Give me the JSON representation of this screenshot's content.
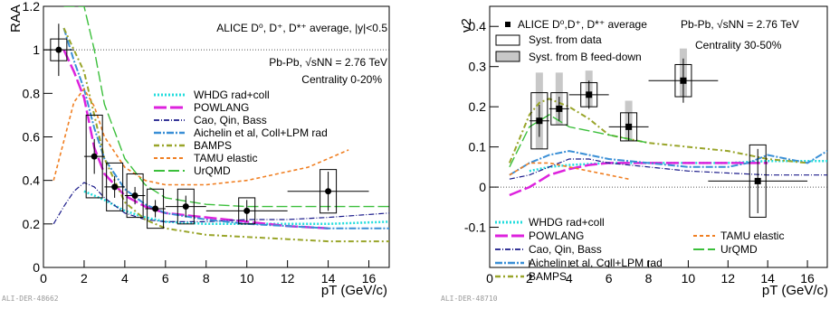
{
  "colors": {
    "WHDG": "#22dddd",
    "POWLANG": "#dd22dd",
    "Cao": "#1a1a8a",
    "Aichelin": "#3a8fd6",
    "BAMPS": "#99a52a",
    "TAMU": "#f07f22",
    "UrQMD": "#3bbf3b",
    "feeddown": "#c8c8c8"
  },
  "chart_data": [
    {
      "type": "line",
      "title": "ALICE D⁰, D⁺, D*⁺ average, |y|<0.5",
      "annotations": [
        "Pb-Pb, √sNN = 2.76 TeV",
        "Centrality 0-20%"
      ],
      "xlabel": "pT (GeV/c)",
      "ylabel": "RAA",
      "xlim": [
        0,
        17
      ],
      "ylim": [
        0,
        1.2
      ],
      "xticks": [
        0,
        2,
        4,
        6,
        8,
        10,
        12,
        14,
        16
      ],
      "yticks": [
        0,
        0.2,
        0.4,
        0.6,
        0.8,
        1,
        1.2
      ],
      "footer": "ALI-DER-48662",
      "data": {
        "x": [
          0.75,
          2.5,
          3.5,
          4.5,
          5.5,
          7.0,
          10.0,
          14.0
        ],
        "xerr": [
          0.75,
          0.5,
          0.5,
          0.5,
          0.5,
          1.0,
          2.0,
          2.0
        ],
        "y": [
          1.0,
          0.51,
          0.37,
          0.33,
          0.27,
          0.28,
          0.26,
          0.35
        ],
        "yerr": [
          0.12,
          0.08,
          0.05,
          0.04,
          0.04,
          0.05,
          0.05,
          0.09
        ],
        "syst": [
          0.05,
          0.19,
          0.11,
          0.1,
          0.09,
          0.08,
          0.06,
          0.1
        ]
      },
      "series": [
        {
          "name": "WHDG rad+coll",
          "key": "WHDG",
          "x": [
            2,
            3,
            4,
            5,
            6,
            8,
            10,
            12,
            14,
            17
          ],
          "y": [
            0.35,
            0.31,
            0.26,
            0.23,
            0.21,
            0.2,
            0.2,
            0.2,
            0.2,
            0.21
          ]
        },
        {
          "name": "POWLANG",
          "key": "POWLANG",
          "x": [
            1,
            1.5,
            2,
            2.5,
            3,
            4,
            5,
            6,
            7,
            8,
            10,
            12,
            14
          ],
          "y": [
            1.0,
            0.9,
            0.78,
            0.55,
            0.43,
            0.33,
            0.28,
            0.25,
            0.24,
            0.23,
            0.21,
            0.19,
            0.18
          ]
        },
        {
          "name": "Cao, Qin, Bass",
          "key": "Cao",
          "x": [
            0.5,
            1,
            1.5,
            2,
            2.5,
            3,
            4,
            5,
            6,
            8,
            10,
            12,
            14,
            17
          ],
          "y": [
            0.2,
            0.28,
            0.35,
            0.39,
            0.37,
            0.32,
            0.25,
            0.22,
            0.21,
            0.21,
            0.22,
            0.22,
            0.23,
            0.25
          ]
        },
        {
          "name": "Aichelin et al, Coll+LPM rad",
          "key": "Aichelin",
          "x": [
            1,
            1.5,
            2,
            2.5,
            3,
            4,
            5,
            6,
            8,
            10,
            12,
            14,
            17
          ],
          "y": [
            1.1,
            0.95,
            0.82,
            0.64,
            0.5,
            0.36,
            0.29,
            0.25,
            0.22,
            0.2,
            0.19,
            0.18,
            0.18
          ]
        },
        {
          "name": "BAMPS",
          "key": "BAMPS",
          "x": [
            1,
            1.5,
            2,
            2.5,
            3,
            4,
            5,
            6,
            8,
            10,
            12,
            14,
            17
          ],
          "y": [
            1.1,
            1.0,
            0.9,
            0.7,
            0.5,
            0.3,
            0.22,
            0.18,
            0.15,
            0.14,
            0.13,
            0.12,
            0.12
          ]
        },
        {
          "name": "TAMU elastic",
          "key": "TAMU",
          "x": [
            0.5,
            1,
            1.5,
            2,
            2.5,
            3,
            4,
            5,
            6,
            7,
            8,
            9,
            10,
            11,
            12,
            13,
            14,
            15
          ],
          "y": [
            0.4,
            0.58,
            0.76,
            0.82,
            0.74,
            0.6,
            0.46,
            0.4,
            0.38,
            0.38,
            0.38,
            0.39,
            0.4,
            0.42,
            0.44,
            0.46,
            0.5,
            0.54
          ]
        },
        {
          "name": "UrQMD",
          "key": "UrQMD",
          "x": [
            1,
            1.5,
            2,
            2.5,
            3,
            4,
            5,
            6,
            8,
            10,
            12,
            14,
            17
          ],
          "y": [
            1.2,
            1.2,
            1.2,
            1.0,
            0.75,
            0.5,
            0.38,
            0.32,
            0.29,
            0.28,
            0.28,
            0.28,
            0.28
          ]
        }
      ]
    },
    {
      "type": "line",
      "title": "ALICE D⁰,D⁺, D*⁺ average",
      "annotations": [
        "Pb-Pb, √sNN = 2.76 TeV",
        "Centrality 30-50%",
        "Syst. from data",
        "Syst. from B feed-down"
      ],
      "xlabel": "pT (GeV/c)",
      "ylabel": "v2",
      "xlim": [
        0,
        17
      ],
      "ylim": [
        -0.2,
        0.45
      ],
      "xticks": [
        0,
        2,
        4,
        6,
        8,
        10,
        12,
        14,
        16
      ],
      "yticks": [
        -0.1,
        0,
        0.1,
        0.2,
        0.3,
        0.4
      ],
      "footer": "ALI-DER-48710",
      "data": {
        "x": [
          2.5,
          3.5,
          5.0,
          7.0,
          9.75,
          13.5
        ],
        "xerr": [
          0.5,
          0.5,
          1.0,
          1.0,
          1.75,
          2.5
        ],
        "y": [
          0.165,
          0.195,
          0.23,
          0.15,
          0.265,
          0.015
        ],
        "yerr": [
          0.04,
          0.03,
          0.035,
          0.035,
          0.055,
          0.08
        ],
        "syst_data": [
          0.07,
          0.04,
          0.03,
          0.035,
          0.04,
          0.09
        ],
        "syst_feeddown_up": [
          0.05,
          0.05,
          0.03,
          0.03,
          0.04,
          0.0
        ]
      },
      "series": [
        {
          "name": "WHDG rad+coll",
          "key": "WHDG",
          "x": [
            2,
            3,
            4,
            6,
            8,
            10,
            12,
            14,
            17
          ],
          "y": [
            0.04,
            0.05,
            0.055,
            0.06,
            0.06,
            0.06,
            0.06,
            0.065,
            0.065
          ]
        },
        {
          "name": "POWLANG",
          "key": "POWLANG",
          "x": [
            1,
            1.5,
            2,
            2.5,
            3,
            4,
            5,
            6,
            8,
            10,
            12,
            14
          ],
          "y": [
            -0.02,
            -0.01,
            0.0,
            0.015,
            0.03,
            0.045,
            0.055,
            0.06,
            0.06,
            0.06,
            0.06,
            0.06
          ]
        },
        {
          "name": "Cao, Qin, Bass",
          "key": "Cao",
          "x": [
            1,
            2,
            3,
            4,
            5,
            6,
            8,
            10,
            12,
            14,
            17
          ],
          "y": [
            0.02,
            0.03,
            0.05,
            0.07,
            0.07,
            0.06,
            0.05,
            0.04,
            0.035,
            0.03,
            0.03
          ]
        },
        {
          "name": "Aichelin et al, Coll+LPM rad",
          "key": "Aichelin",
          "x": [
            1,
            2,
            3,
            4,
            5,
            6,
            8,
            10,
            12,
            13,
            14,
            15,
            16,
            17
          ],
          "y": [
            0.03,
            0.06,
            0.08,
            0.09,
            0.08,
            0.07,
            0.06,
            0.05,
            0.05,
            0.06,
            0.08,
            0.07,
            0.06,
            0.09
          ]
        },
        {
          "name": "BAMPS",
          "key": "BAMPS",
          "x": [
            1,
            1.5,
            2,
            2.5,
            3,
            4,
            5,
            6,
            8,
            10,
            12,
            14,
            16
          ],
          "y": [
            0.06,
            0.12,
            0.18,
            0.21,
            0.22,
            0.2,
            0.17,
            0.13,
            0.11,
            0.1,
            0.09,
            0.07,
            0.06
          ]
        },
        {
          "name": "TAMU elastic",
          "key": "TAMU",
          "x": [
            1,
            2,
            3,
            4,
            5,
            6,
            7
          ],
          "y": [
            0.03,
            0.06,
            0.06,
            0.05,
            0.04,
            0.03,
            0.02
          ]
        },
        {
          "name": "UrQMD",
          "key": "UrQMD",
          "x": [
            1,
            2,
            3,
            4,
            5,
            6,
            8
          ],
          "y": [
            0.05,
            0.15,
            0.18,
            0.15,
            0.14,
            0.13,
            0.11
          ]
        }
      ]
    }
  ],
  "legend_right_cols": {
    "left_col": [
      "WHDG",
      "POWLANG",
      "Cao",
      "Aichelin",
      "BAMPS"
    ],
    "right_col": [
      "TAMU",
      "UrQMD"
    ]
  }
}
